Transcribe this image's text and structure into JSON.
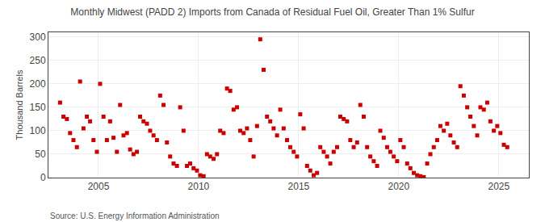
{
  "chart_data": {
    "type": "scatter",
    "title": "Monthly Midwest (PADD 2) Imports from Canada of Residual Fuel Oil, Greater Than 1% Sulfur",
    "ylabel": "Thousand Barrels",
    "annotations": [
      "Source: U.S. Energy Information Administration"
    ],
    "color": "#cc0000",
    "marker": "square",
    "grid": true,
    "xlim": [
      2002.5,
      2026.5
    ],
    "ylim": [
      0,
      310
    ],
    "xticks": [
      2005,
      2010,
      2015,
      2020,
      2025
    ],
    "yticks": [
      0,
      50,
      100,
      150,
      200,
      250,
      300
    ],
    "x": [
      2003.08,
      2003.25,
      2003.42,
      2003.58,
      2003.75,
      2003.92,
      2004.08,
      2004.25,
      2004.42,
      2004.58,
      2004.75,
      2004.92,
      2005.08,
      2005.25,
      2005.42,
      2005.58,
      2005.75,
      2005.92,
      2006.08,
      2006.25,
      2006.42,
      2006.58,
      2006.75,
      2006.92,
      2007.08,
      2007.25,
      2007.42,
      2007.58,
      2007.75,
      2007.92,
      2008.08,
      2008.25,
      2008.42,
      2008.58,
      2008.75,
      2008.92,
      2009.08,
      2009.25,
      2009.42,
      2009.58,
      2009.75,
      2009.92,
      2010.08,
      2010.25,
      2010.42,
      2010.58,
      2010.75,
      2010.92,
      2011.08,
      2011.25,
      2011.42,
      2011.58,
      2011.75,
      2011.92,
      2012.08,
      2012.25,
      2012.42,
      2012.58,
      2012.75,
      2012.92,
      2013.08,
      2013.25,
      2013.42,
      2013.58,
      2013.75,
      2013.92,
      2014.08,
      2014.25,
      2014.42,
      2014.58,
      2014.75,
      2014.92,
      2015.08,
      2015.25,
      2015.42,
      2015.58,
      2015.75,
      2015.92,
      2016.08,
      2016.25,
      2016.42,
      2016.58,
      2016.75,
      2016.92,
      2017.08,
      2017.25,
      2017.42,
      2017.58,
      2017.75,
      2017.92,
      2018.08,
      2018.25,
      2018.42,
      2018.58,
      2018.75,
      2018.92,
      2019.08,
      2019.25,
      2019.42,
      2019.58,
      2019.75,
      2019.92,
      2020.08,
      2020.25,
      2020.42,
      2020.58,
      2020.75,
      2020.92,
      2021.08,
      2021.25,
      2021.42,
      2021.58,
      2021.75,
      2021.92,
      2022.08,
      2022.25,
      2022.42,
      2022.58,
      2022.75,
      2022.92,
      2023.08,
      2023.25,
      2023.42,
      2023.58,
      2023.75,
      2023.92,
      2024.08,
      2024.25,
      2024.42,
      2024.58,
      2024.75,
      2024.92,
      2025.08,
      2025.25,
      2025.42
    ],
    "values": [
      160,
      130,
      125,
      95,
      80,
      65,
      205,
      105,
      130,
      120,
      80,
      55,
      200,
      130,
      80,
      120,
      85,
      55,
      155,
      90,
      95,
      60,
      50,
      55,
      130,
      120,
      115,
      100,
      90,
      80,
      175,
      155,
      75,
      45,
      30,
      25,
      150,
      100,
      25,
      30,
      20,
      15,
      5,
      3,
      50,
      45,
      40,
      50,
      100,
      95,
      190,
      185,
      145,
      150,
      100,
      95,
      105,
      80,
      45,
      110,
      295,
      230,
      130,
      120,
      105,
      90,
      145,
      105,
      80,
      65,
      55,
      45,
      135,
      105,
      25,
      15,
      5,
      10,
      65,
      55,
      45,
      30,
      55,
      65,
      130,
      125,
      120,
      80,
      65,
      75,
      155,
      130,
      65,
      45,
      35,
      25,
      100,
      85,
      65,
      55,
      45,
      35,
      80,
      65,
      30,
      20,
      10,
      5,
      3,
      1,
      30,
      50,
      65,
      80,
      110,
      100,
      115,
      90,
      75,
      65,
      195,
      175,
      150,
      130,
      110,
      90,
      150,
      145,
      160,
      120,
      100,
      110,
      95,
      70,
      65
    ]
  }
}
